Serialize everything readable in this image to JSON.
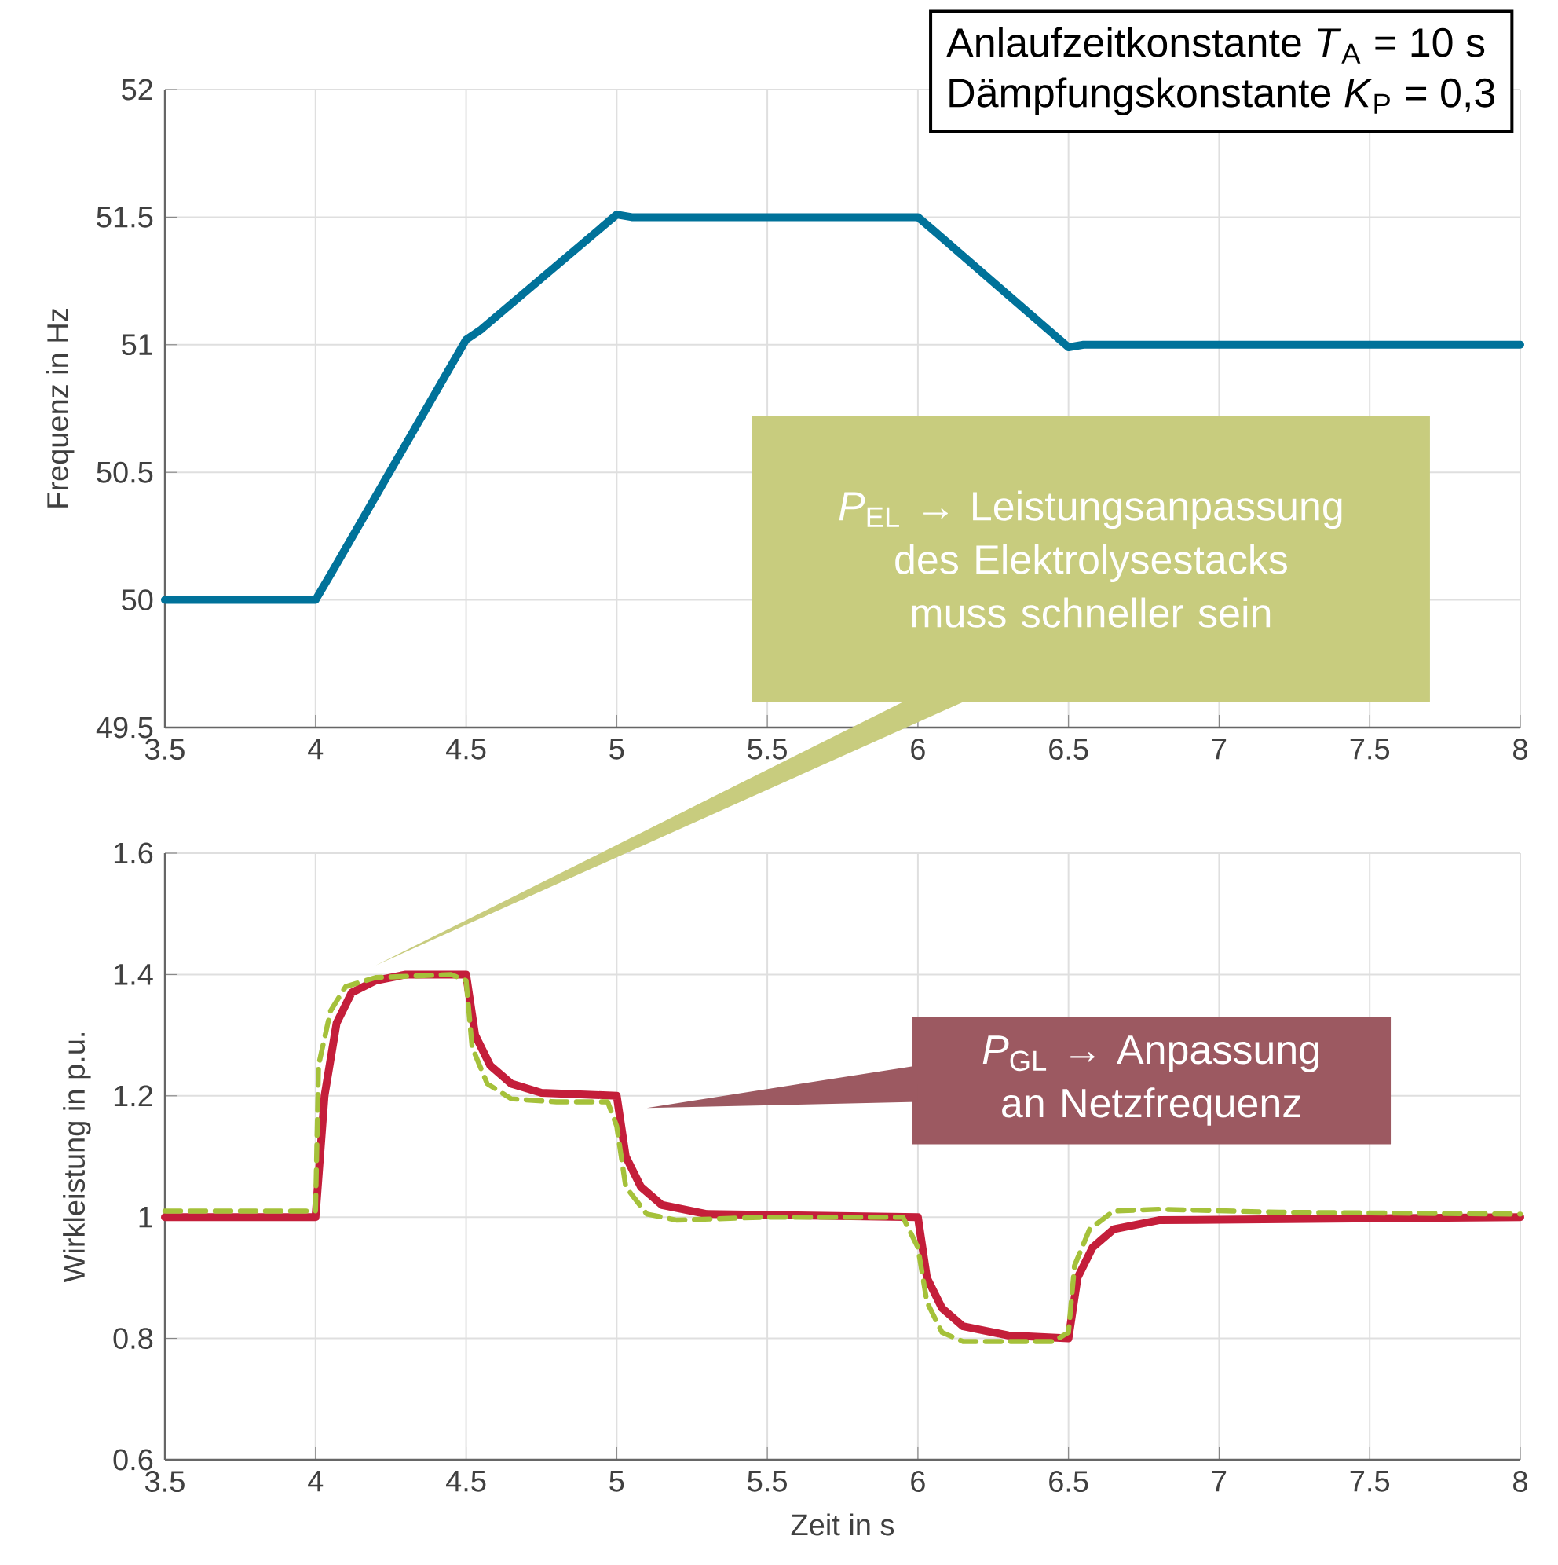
{
  "chart_data": [
    {
      "type": "line",
      "ylabel": "Frequenz in Hz",
      "xlim": [
        3.5,
        8
      ],
      "ylim": [
        49.5,
        52
      ],
      "xticks": [
        3.5,
        4,
        4.5,
        5,
        5.5,
        6,
        6.5,
        7,
        7.5,
        8
      ],
      "yticks": [
        49.5,
        50,
        50.5,
        51,
        51.5,
        52
      ],
      "grid": true,
      "annotations": [
        "Anlaufzeitkonstante     *T*$_{A}$ = 10 s",
        "Dämpfungskonstante  *K*$_{P}$ = 0,3"
      ],
      "series": [
        {
          "color": "#00729a",
          "x": [
            3.5,
            4.0,
            4.05,
            4.5,
            4.55,
            5.0,
            5.05,
            6.0,
            6.05,
            6.5,
            6.55,
            8.0
          ],
          "values": [
            50,
            50,
            50.1,
            51.02,
            51.06,
            51.51,
            51.5,
            51.5,
            51.45,
            50.99,
            51,
            51
          ]
        }
      ]
    },
    {
      "type": "line",
      "xlabel": "Zeit in s",
      "ylabel": "Wirkleistung in p.u.",
      "xlim": [
        3.5,
        8
      ],
      "ylim": [
        0.6,
        1.6
      ],
      "xticks": [
        3.5,
        4,
        4.5,
        5,
        5.5,
        6,
        6.5,
        7,
        7.5,
        8
      ],
      "yticks": [
        0.6,
        0.8,
        1,
        1.2,
        1.4,
        1.6
      ],
      "grid": true,
      "annotations": [
        "*P*$_{EL}$ → Leistungsanpassung des Elektrolysestacks muss schneller sein",
        "*P*$_{GL}$ → Anpassung an Netzfrequenz"
      ],
      "series": [
        {
          "color": "#c41e3a",
          "line_style": "solid",
          "x": [
            3.5,
            4.0,
            4.03,
            4.07,
            4.12,
            4.2,
            4.3,
            4.5,
            4.53,
            4.58,
            4.65,
            4.75,
            5.0,
            5.03,
            5.08,
            5.15,
            5.3,
            6.0,
            6.03,
            6.08,
            6.15,
            6.3,
            6.5,
            6.53,
            6.58,
            6.65,
            6.8,
            8.0
          ],
          "values": [
            1.0,
            1.0,
            1.2,
            1.32,
            1.37,
            1.39,
            1.4,
            1.4,
            1.3,
            1.25,
            1.22,
            1.205,
            1.2,
            1.1,
            1.05,
            1.02,
            1.005,
            1.0,
            0.9,
            0.85,
            0.82,
            0.805,
            0.8,
            0.9,
            0.95,
            0.98,
            0.995,
            1.0
          ]
        },
        {
          "color": "#a5c13a",
          "line_style": "dashed",
          "x": [
            3.5,
            4.0,
            4.01,
            4.05,
            4.1,
            4.2,
            4.45,
            4.5,
            4.52,
            4.57,
            4.65,
            4.8,
            4.97,
            5.0,
            5.03,
            5.1,
            5.2,
            5.5,
            5.95,
            6.0,
            6.03,
            6.08,
            6.15,
            6.45,
            6.5,
            6.52,
            6.57,
            6.65,
            6.8,
            7.2,
            8.0
          ],
          "values": [
            1.01,
            1.01,
            1.25,
            1.34,
            1.38,
            1.395,
            1.4,
            1.39,
            1.28,
            1.22,
            1.195,
            1.19,
            1.19,
            1.15,
            1.05,
            1.005,
            0.995,
            1.0,
            1.0,
            0.95,
            0.86,
            0.81,
            0.795,
            0.795,
            0.81,
            0.92,
            0.98,
            1.01,
            1.013,
            1.008,
            1.005
          ]
        }
      ]
    }
  ]
}
